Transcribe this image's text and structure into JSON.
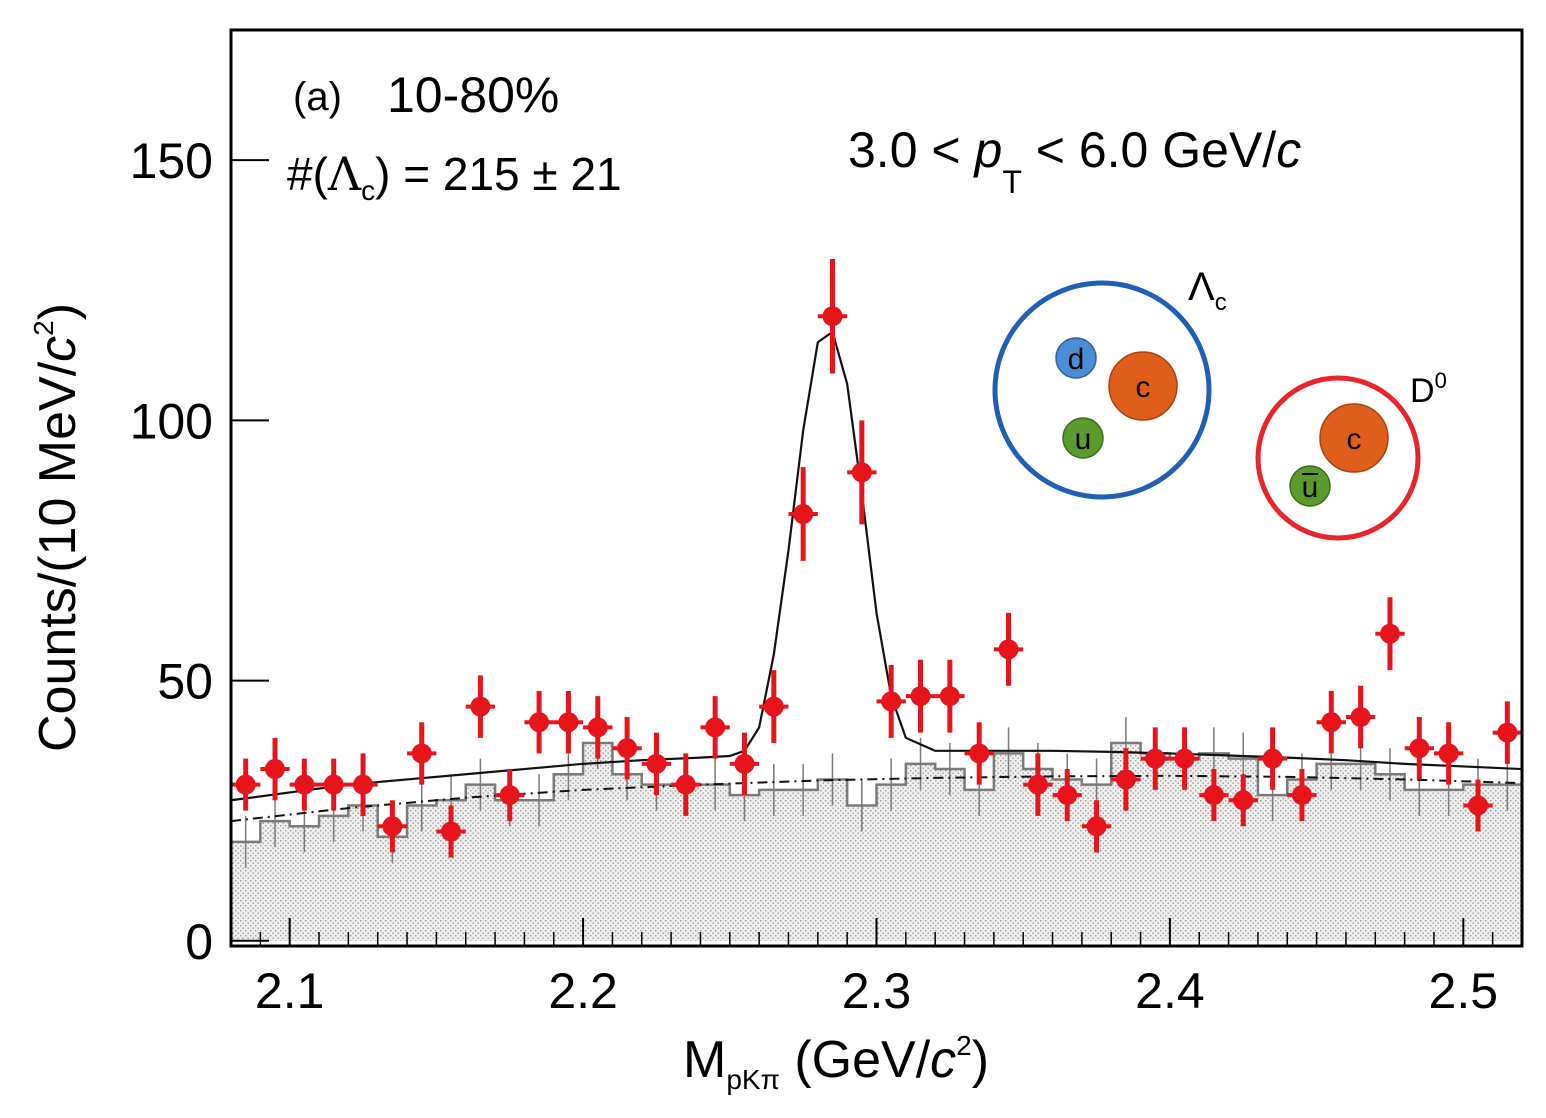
{
  "chart_data": {
    "type": "scatter",
    "title": "",
    "xlabel": {
      "main": "M",
      "sub": "pKπ",
      "unit_open": " (GeV/",
      "unit_c": "c",
      "unit_sup": "2",
      "unit_close": ")"
    },
    "ylabel": {
      "main": "Counts/(10 MeV/",
      "unit_c": "c",
      "unit_sup": "2",
      "unit_close": ")"
    },
    "xlim": [
      2.08,
      2.52
    ],
    "ylim": [
      -1,
      175
    ],
    "xticks": [
      2.1,
      2.2,
      2.3,
      2.4,
      2.5
    ],
    "xtick_labels": [
      "2.1",
      "2.2",
      "2.3",
      "2.4",
      "2.5"
    ],
    "yticks": [
      0,
      50,
      100,
      150
    ],
    "ytick_labels": [
      "0",
      "50",
      "100",
      "150"
    ],
    "grid": false,
    "annotations": {
      "panel": "(a)",
      "centrality": "10-80%",
      "yield_prefix": "#(",
      "yield_symbol": "Λ",
      "yield_sub": "c",
      "yield_suffix": ") = 215 ± 21",
      "pt_low": "3.0 < ",
      "pt_p": "p",
      "pt_sub": "T",
      "pt_mid": " < 6.0 GeV/",
      "pt_c": "c"
    },
    "hadron_diagrams": [
      {
        "name": "Λ",
        "name_sub": "c",
        "ring_color": "#1f5fb4",
        "quarks": [
          "d",
          "c",
          "u"
        ],
        "quark_colors": [
          "#4a8fd6",
          "#e05e1b",
          "#5b9a2c"
        ]
      },
      {
        "name": "D",
        "name_sup": "0",
        "ring_color": "#e8262a",
        "quarks": [
          "c",
          "u"
        ],
        "quark_bar": [
          false,
          true
        ],
        "quark_colors": [
          "#e05e1b",
          "#5b9a2c"
        ]
      }
    ],
    "colors": {
      "signal": "#e8141c",
      "fit": "#111111",
      "background_hist": "#7a7a7a",
      "background_fill": "#e6e6e6",
      "background_fit": "#111111"
    },
    "series": [
      {
        "name": "",
        "kind": "points_with_errors",
        "x": [
          2.085,
          2.095,
          2.105,
          2.115,
          2.125,
          2.135,
          2.145,
          2.155,
          2.165,
          2.175,
          2.185,
          2.195,
          2.205,
          2.215,
          2.225,
          2.235,
          2.245,
          2.255,
          2.265,
          2.275,
          2.285,
          2.295,
          2.305,
          2.315,
          2.325,
          2.335,
          2.345,
          2.355,
          2.365,
          2.375,
          2.385,
          2.395,
          2.405,
          2.415,
          2.425,
          2.435,
          2.445,
          2.455,
          2.465,
          2.475,
          2.485,
          2.495,
          2.505,
          2.515
        ],
        "y": [
          30,
          33,
          30,
          30,
          30,
          22,
          36,
          21,
          45,
          28,
          42,
          42,
          41,
          37,
          34,
          30,
          41,
          34,
          45,
          82,
          120,
          90,
          46,
          47,
          47,
          36,
          56,
          30,
          28,
          22,
          31,
          35,
          35,
          28,
          27,
          35,
          28,
          42,
          43,
          59,
          37,
          36,
          26,
          40
        ],
        "yerr": [
          5,
          6,
          5,
          5,
          6,
          5,
          6,
          5,
          6,
          5,
          6,
          6,
          6,
          6,
          6,
          6,
          6,
          6,
          7,
          9,
          11,
          10,
          7,
          7,
          7,
          6,
          7,
          6,
          5,
          5,
          6,
          6,
          6,
          5,
          5,
          6,
          5,
          6,
          6,
          7,
          6,
          6,
          5,
          6
        ]
      },
      {
        "name": "",
        "kind": "step_histogram",
        "x_edges": [
          2.08,
          2.09,
          2.1,
          2.11,
          2.12,
          2.13,
          2.14,
          2.15,
          2.16,
          2.17,
          2.18,
          2.19,
          2.2,
          2.21,
          2.22,
          2.23,
          2.24,
          2.25,
          2.26,
          2.27,
          2.28,
          2.29,
          2.3,
          2.31,
          2.32,
          2.33,
          2.34,
          2.35,
          2.36,
          2.37,
          2.38,
          2.39,
          2.4,
          2.41,
          2.42,
          2.43,
          2.44,
          2.45,
          2.46,
          2.47,
          2.48,
          2.49,
          2.5,
          2.51,
          2.52
        ],
        "y": [
          19,
          23,
          22,
          24,
          26,
          20,
          26,
          27,
          30,
          27,
          27,
          32,
          38,
          32,
          30,
          30,
          30,
          28,
          29,
          29,
          31,
          26,
          30,
          34,
          33,
          29,
          36,
          33,
          31,
          30,
          38,
          36,
          35,
          36,
          35,
          28,
          31,
          34,
          34,
          32,
          29,
          29,
          30,
          30
        ]
      },
      {
        "name": "",
        "kind": "line",
        "style": "solid",
        "x": [
          2.08,
          2.1,
          2.12,
          2.14,
          2.16,
          2.18,
          2.2,
          2.22,
          2.24,
          2.25,
          2.255,
          2.26,
          2.265,
          2.27,
          2.275,
          2.28,
          2.285,
          2.29,
          2.295,
          2.3,
          2.305,
          2.31,
          2.32,
          2.34,
          2.36,
          2.38,
          2.4,
          2.42,
          2.44,
          2.46,
          2.48,
          2.5,
          2.52
        ],
        "y": [
          27,
          28.5,
          30,
          31,
          32,
          33,
          34,
          34.7,
          35.2,
          35.5,
          36.5,
          41,
          55,
          75,
          98,
          115,
          117,
          107,
          86,
          63,
          47,
          39,
          36.5,
          36.5,
          36.5,
          36.3,
          36,
          35.6,
          35.2,
          34.7,
          34,
          33.5,
          33
        ]
      },
      {
        "name": "",
        "kind": "line",
        "style": "dashdot",
        "x": [
          2.08,
          2.12,
          2.16,
          2.2,
          2.24,
          2.28,
          2.32,
          2.36,
          2.4,
          2.44,
          2.48,
          2.52
        ],
        "y": [
          23,
          25.5,
          27.5,
          29,
          30,
          30.8,
          31.3,
          31.6,
          31.7,
          31.5,
          31,
          30.3
        ]
      }
    ]
  }
}
